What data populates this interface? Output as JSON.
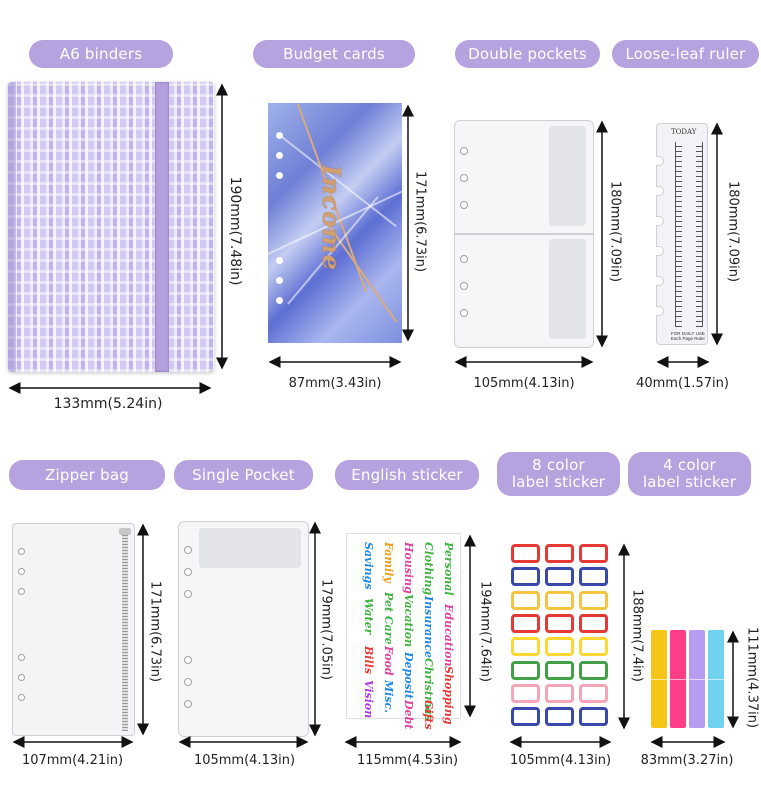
{
  "row1": {
    "items": [
      {
        "title": "A6 binders",
        "width_label": "133mm(5.24in)",
        "height_label": "190mm(7.48in)"
      },
      {
        "title": "Budget cards",
        "width_label": "87mm(3.43in)",
        "height_label": "171mm(6.73in)",
        "card_text": "Income"
      },
      {
        "title": "Double pockets",
        "width_label": "105mm(4.13in)",
        "height_label": "180mm(7.09in)"
      },
      {
        "title": "Loose-leaf ruler",
        "width_label": "40mm(1.57in)",
        "height_label": "180mm(7.09in)",
        "ruler_top_text": "TODAY",
        "ruler_foot_text": "FOR DAILY USE Each Page Ruler"
      }
    ]
  },
  "row2": {
    "items": [
      {
        "title": "Zipper bag",
        "width_label": "107mm(4.21in)",
        "height_label": "171mm(6.73in)"
      },
      {
        "title": "Single Pocket",
        "width_label": "105mm(4.13in)",
        "height_label": "179mm(7.05in)"
      },
      {
        "title": "English sticker",
        "width_label": "115mm(4.53in)",
        "height_label": "194mm(7.64in)",
        "sticker_words": [
          "Personal",
          "Education",
          "Shopping",
          "Clothing",
          "Insurance",
          "Christmas",
          "Gifts",
          "Housing",
          "Vacation",
          "Deposit",
          "Debt",
          "Family",
          "Pet Care",
          "Food",
          "Misc.",
          "Savings",
          "Water",
          "Bills",
          "Vision"
        ]
      },
      {
        "title_line1": "8 color",
        "title_line2": "label sticker",
        "width_label": "105mm(4.13in)",
        "height_label": "188mm(7.4in)"
      },
      {
        "title_line1": "4 color",
        "title_line2": "label sticker",
        "width_label": "83mm(3.27in)",
        "height_label": "111mm(4.37in)"
      }
    ]
  },
  "colors": {
    "pill": "#b7a2e0",
    "label8_borders": [
      "#e53935",
      "#3949ab",
      "#f4c542",
      "#e53935",
      "#fdd835",
      "#43a047",
      "#f4a6b8",
      "#3949ab"
    ],
    "label4_fills": [
      "#f5c518",
      "#ff3e8a",
      "#b79cf0",
      "#6fd3f0"
    ]
  }
}
